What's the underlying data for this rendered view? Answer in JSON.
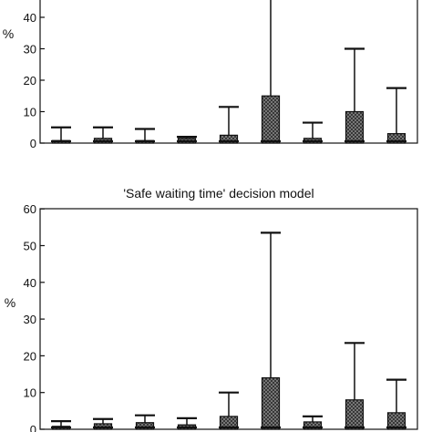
{
  "chart_data": [
    {
      "type": "bar",
      "title": "",
      "ylabel": "%",
      "xlabel": "",
      "ylim": [
        0,
        50
      ],
      "yticks": [
        0,
        10,
        20,
        30,
        40
      ],
      "n_categories": 9,
      "values": [
        0.8,
        1.5,
        0.8,
        1.5,
        2.5,
        15,
        1.5,
        10,
        3
      ],
      "error_upper": [
        5,
        5,
        4.5,
        2,
        11.5,
        50,
        6.5,
        30,
        17.5
      ]
    },
    {
      "type": "bar",
      "title": "'Safe waiting time' decision model",
      "ylabel": "%",
      "xlabel": "",
      "ylim": [
        0,
        60
      ],
      "yticks": [
        0,
        10,
        20,
        30,
        40,
        50,
        60
      ],
      "n_categories": 9,
      "values": [
        0.8,
        1.5,
        1.8,
        1.2,
        3.5,
        14,
        2,
        8,
        4.5
      ],
      "error_upper": [
        2.2,
        2.8,
        3.8,
        3,
        10,
        53.5,
        3.5,
        23.5,
        13.5
      ]
    }
  ]
}
